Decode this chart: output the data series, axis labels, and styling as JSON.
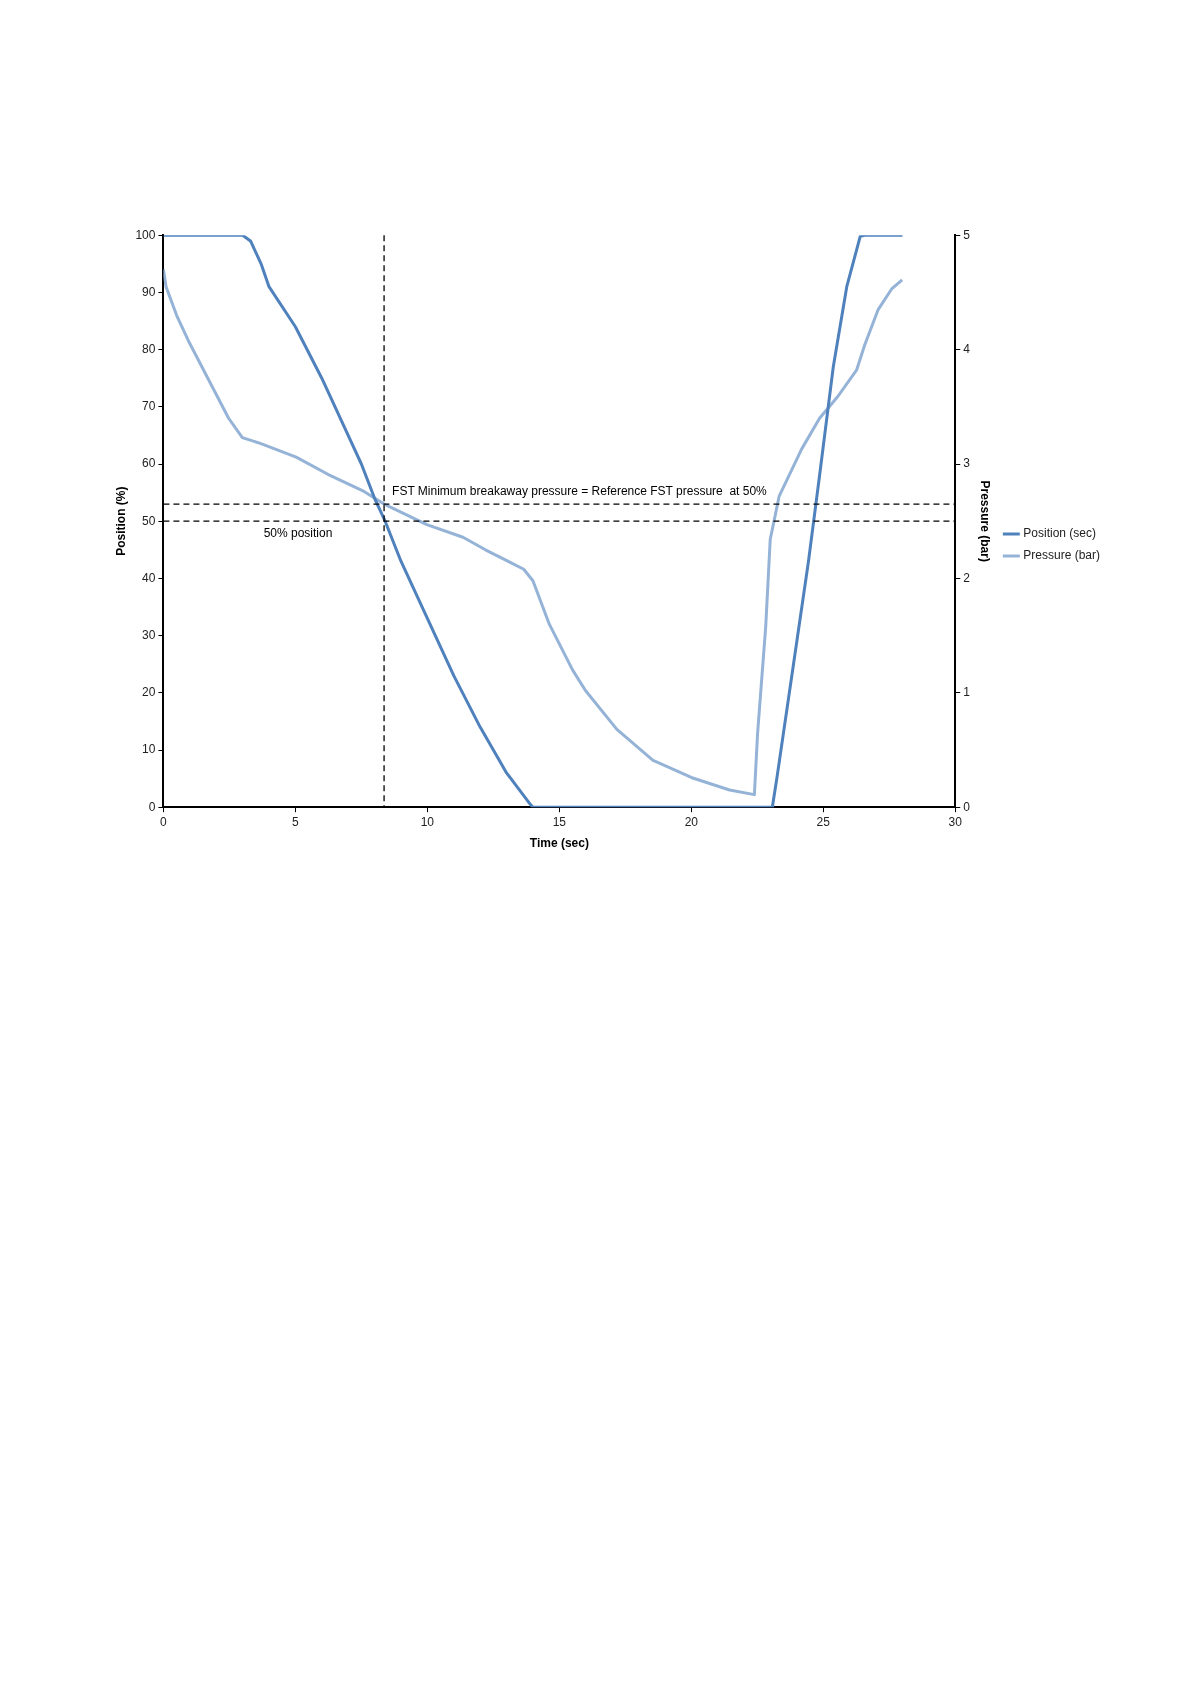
{
  "chart_data": {
    "type": "line",
    "xlabel": "Time (sec)",
    "ylabel": "Position (%)",
    "y2label": "Pressure (bar)",
    "xlim": [
      0,
      30
    ],
    "xticks": [
      0,
      5,
      10,
      15,
      20,
      25,
      30
    ],
    "ylim": [
      0,
      100
    ],
    "yticks": [
      0,
      10,
      20,
      30,
      40,
      50,
      60,
      70,
      80,
      90,
      100
    ],
    "y2lim": [
      0,
      5
    ],
    "y2ticks": [
      0,
      1,
      2,
      3,
      4,
      5
    ],
    "grid": false,
    "legend": "right",
    "marker": "none",
    "line_style": "solid",
    "series": [
      {
        "name": "Position (sec)",
        "color": "#4f81bd",
        "x": [
          0,
          3,
          3.3,
          3.7,
          4,
          5,
          6,
          7,
          7.5,
          8,
          8.4,
          9,
          10,
          11,
          12,
          13,
          13.9,
          14,
          23.07,
          23.24,
          23.84,
          24.44,
          24.86,
          25.38,
          25.89,
          26.4,
          26.57,
          28
        ],
        "values": [
          100,
          100,
          99,
          95,
          91,
          84,
          75,
          65,
          60,
          54,
          50,
          43,
          33,
          23,
          14,
          6,
          0.5,
          0,
          0,
          5,
          24,
          43,
          58,
          77,
          91,
          99.8,
          100,
          100
        ]
      },
      {
        "name": "Pressure (bar)",
        "color": "#95b3d7",
        "axis": "y2",
        "x": [
          0,
          0.1,
          0.5,
          0.94,
          2.47,
          2.99,
          3.67,
          5.03,
          6.23,
          7.6,
          8.36,
          9.98,
          11.35,
          12.2,
          13.65,
          14.0,
          14.62,
          15.5,
          15.99,
          17.18,
          18.55,
          20,
          21.45,
          22.39,
          22.51,
          22.82,
          22.99,
          23.33,
          24.18,
          24.86,
          25.55,
          26.26,
          26.57,
          27.08,
          27.59,
          27.99
        ],
        "values": [
          4.7,
          4.55,
          4.3,
          4.08,
          3.4,
          3.23,
          3.18,
          3.06,
          2.91,
          2.76,
          2.65,
          2.47,
          2.36,
          2.25,
          2.08,
          1.98,
          1.6,
          1.2,
          1.02,
          0.68,
          0.41,
          0.26,
          0.15,
          0.11,
          0.64,
          1.58,
          2.34,
          2.72,
          3.13,
          3.4,
          3.59,
          3.82,
          4.04,
          4.35,
          4.53,
          4.61
        ]
      }
    ],
    "ref_lines": [
      {
        "axis": "y",
        "value": 53,
        "label": "FST Minimum breakaway pressure = Reference FST pressure  at 50%",
        "line_style": "dashed",
        "color": "#000000"
      },
      {
        "axis": "y",
        "value": 50,
        "label": "50% position",
        "line_style": "dashed",
        "color": "#000000"
      },
      {
        "axis": "x",
        "value": 8.36,
        "line_style": "dashed",
        "color": "#000000"
      }
    ]
  }
}
